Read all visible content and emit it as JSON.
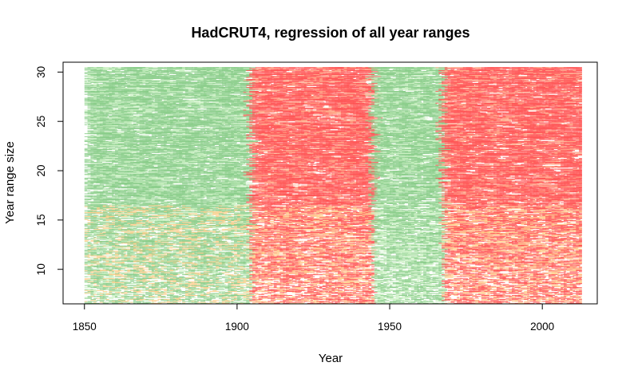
{
  "chart_data": {
    "type": "line",
    "title": "HadCRUT4, regression of all year ranges",
    "xlabel": "Year",
    "ylabel": "Year range size",
    "xlim": [
      1843,
      2018
    ],
    "ylim": [
      6.5,
      31
    ],
    "x_ticks": [
      1850,
      1900,
      1950,
      2000
    ],
    "y_ticks": [
      10,
      15,
      20,
      25,
      30
    ],
    "x_range": [
      1850,
      2013
    ],
    "range_sizes": [
      7,
      30
    ],
    "grid": false,
    "legend": "none",
    "trend_bands": [
      {
        "from": 1850,
        "to": 1868,
        "low": "orange",
        "high": "green"
      },
      {
        "from": 1868,
        "to": 1905,
        "low": "orange",
        "high": "green"
      },
      {
        "from": 1905,
        "to": 1945,
        "low": "orange",
        "high": "red"
      },
      {
        "from": 1945,
        "to": 1968,
        "low": "green",
        "high": "green"
      },
      {
        "from": 1968,
        "to": 2013,
        "low": "orange",
        "high": "red"
      }
    ],
    "colors": {
      "warming_strong": "#ff5555",
      "warming_moderate": "#ffaa88",
      "neutral": "#ffcc88",
      "cooling_mild": "#c8f0c0",
      "cooling_strong": "#88cc88"
    }
  }
}
